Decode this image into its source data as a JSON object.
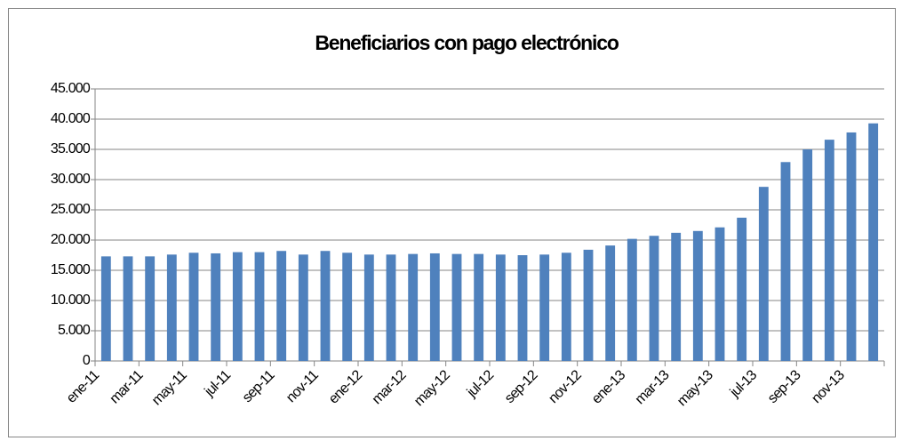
{
  "chart_data": {
    "type": "bar",
    "title": "Beneficiarios con pago electrónico",
    "categories": [
      "ene-11",
      null,
      "mar-11",
      null,
      "may-11",
      null,
      "jul-11",
      null,
      "sep-11",
      null,
      "nov-11",
      null,
      "ene-12",
      null,
      "mar-12",
      null,
      "may-12",
      null,
      "jul-12",
      null,
      "sep-12",
      null,
      "nov-12",
      null,
      "ene-13",
      null,
      "mar-13",
      null,
      "may-13",
      null,
      "jul-13",
      null,
      "sep-13",
      null,
      "nov-13",
      null
    ],
    "values": [
      17300,
      17300,
      17300,
      17600,
      17900,
      17800,
      18000,
      18000,
      18200,
      17600,
      18200,
      17900,
      17600,
      17600,
      17700,
      17800,
      17700,
      17700,
      17600,
      17500,
      17600,
      17900,
      18400,
      19100,
      20200,
      20700,
      21200,
      21500,
      22100,
      23700,
      28800,
      32900,
      35000,
      36600,
      37800,
      39300
    ],
    "color": "#4f81bd",
    "ylim": [
      0,
      45000
    ],
    "yticks": [
      0,
      {
        "value": 5000,
        "label": "5.000"
      },
      {
        "value": 10000,
        "label": "10.000"
      },
      {
        "value": 15000,
        "label": "15.000"
      },
      {
        "value": 20000,
        "label": "20.000"
      },
      {
        "value": 25000,
        "label": "25.000"
      },
      {
        "value": 30000,
        "label": "30.000"
      },
      {
        "value": 35000,
        "label": "35.000"
      },
      {
        "value": 40000,
        "label": "40.000"
      },
      {
        "value": 45000,
        "label": "45.000"
      }
    ],
    "grid": true
  }
}
